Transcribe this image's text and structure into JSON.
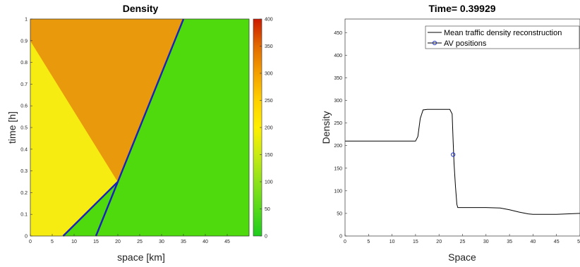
{
  "chart_data": [
    {
      "type": "heatmap",
      "title": "Density",
      "xlabel": "space [km]",
      "ylabel": "time [h]",
      "xlim": [
        0,
        50
      ],
      "ylim": [
        0,
        1
      ],
      "xticks": [
        0,
        5,
        10,
        15,
        20,
        25,
        30,
        35,
        40,
        45
      ],
      "yticks": [
        0,
        0.1,
        0.2,
        0.3,
        0.4,
        0.5,
        0.6,
        0.7,
        0.8,
        0.9,
        1
      ],
      "colorbar": {
        "range": [
          0,
          400
        ],
        "ticks": [
          0,
          50,
          100,
          150,
          200,
          250,
          300,
          350,
          400
        ],
        "colors": [
          "#1fcc1f",
          "#56d91a",
          "#8ee21a",
          "#c9ea14",
          "#ffef00",
          "#ffd000",
          "#f4a000",
          "#e26a00",
          "#cc1a00"
        ]
      },
      "regions": [
        {
          "density": 210,
          "color": "#f7ec12",
          "polygon": [
            [
              0,
              0
            ],
            [
              7.5,
              0
            ],
            [
              20,
              0.25
            ],
            [
              0,
              0.9
            ]
          ]
        },
        {
          "density": 280,
          "color": "#e89a0c",
          "polygon": [
            [
              0,
              0.9
            ],
            [
              0,
              1
            ],
            [
              35,
              1
            ],
            [
              20,
              0.25
            ]
          ]
        },
        {
          "density": 62,
          "color": "#4fda0d",
          "polygon": [
            [
              7.5,
              0
            ],
            [
              15,
              0
            ],
            [
              20,
              0.25
            ]
          ]
        },
        {
          "density": 55,
          "color": "#4fda0d",
          "polygon": [
            [
              15,
              0
            ],
            [
              50,
              0
            ],
            [
              50,
              1
            ],
            [
              35,
              1
            ],
            [
              20,
              0.25
            ]
          ]
        }
      ],
      "trajectories": [
        {
          "color": "#1a22b8",
          "points": [
            [
              7.5,
              0
            ],
            [
              20,
              0.25
            ]
          ]
        },
        {
          "color": "#1a22b8",
          "points": [
            [
              15,
              0
            ],
            [
              20,
              0.25
            ],
            [
              35,
              1
            ]
          ]
        }
      ]
    },
    {
      "type": "line",
      "title": "Time= 0.39929",
      "xlabel": "Space",
      "ylabel": "Density",
      "xlim": [
        0,
        50
      ],
      "ylim": [
        0,
        480
      ],
      "xticks": [
        0,
        5,
        10,
        15,
        20,
        25,
        30,
        35,
        40,
        45,
        50
      ],
      "yticks": [
        0,
        50,
        100,
        150,
        200,
        250,
        300,
        350,
        400,
        450
      ],
      "legend": {
        "placement": "top-right"
      },
      "series": [
        {
          "name": "Mean traffic density reconstruction",
          "color": "#000000",
          "x": [
            0,
            15,
            15.5,
            16,
            16.6,
            17.5,
            22.3,
            22.8,
            23.0,
            23.2,
            23.5,
            23.8,
            24,
            30,
            33,
            35,
            37,
            39,
            40,
            45,
            50
          ],
          "y": [
            210,
            210,
            220,
            260,
            279,
            280,
            280,
            270,
            210,
            160,
            110,
            70,
            63,
            63,
            62,
            58,
            53,
            49,
            48,
            48,
            50
          ]
        },
        {
          "name": "AV positions",
          "color": "#2233cc",
          "marker": "circle",
          "x": [
            23.0
          ],
          "y": [
            180
          ]
        }
      ]
    }
  ]
}
